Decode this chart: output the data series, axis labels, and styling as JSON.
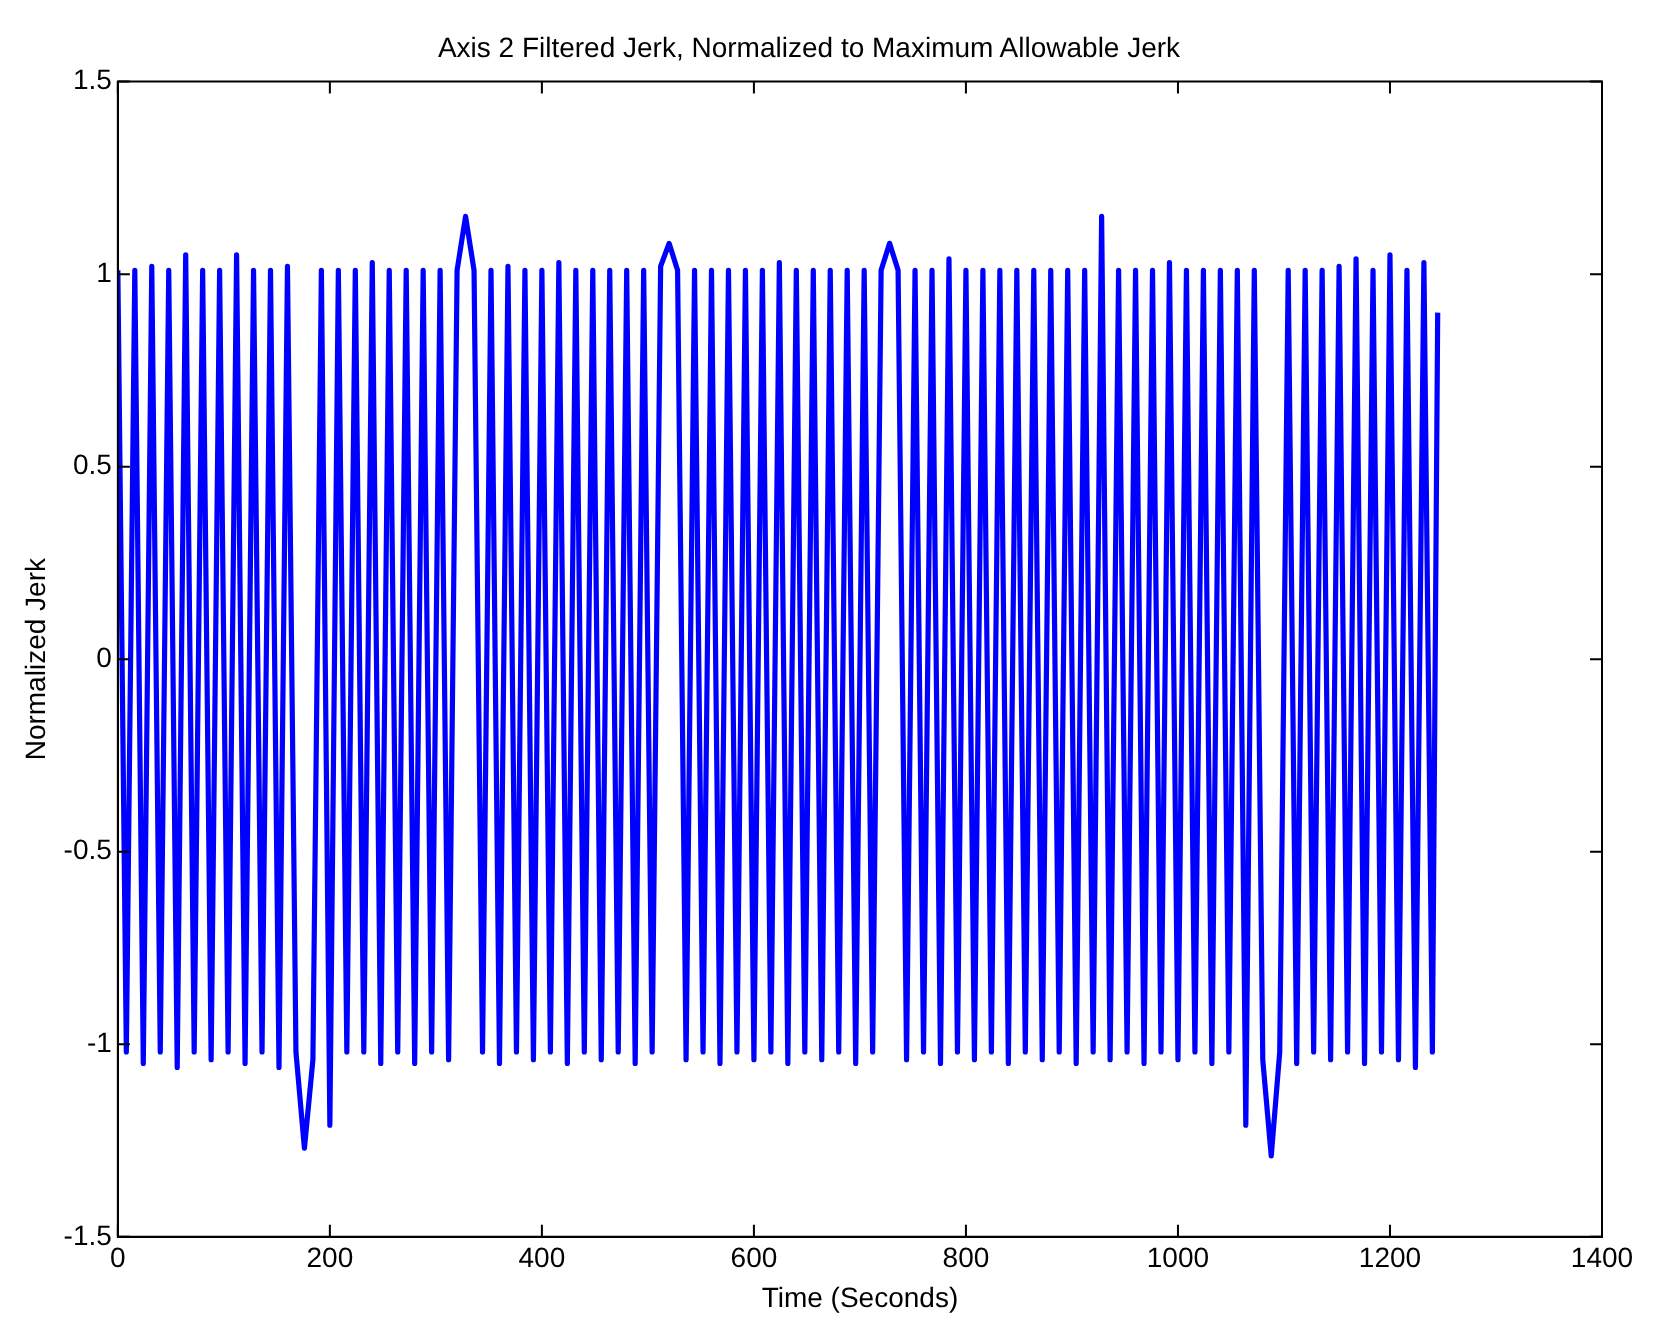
{
  "chart_data": {
    "type": "line",
    "title": "Axis 2 Filtered Jerk, Normalized to Maximum Allowable Jerk",
    "xlabel": "Time (Seconds)",
    "ylabel": "Normalized Jerk",
    "xlim": [
      0,
      1400
    ],
    "xticks": [
      0,
      200,
      400,
      600,
      800,
      1000,
      1200,
      1400
    ],
    "ylim": [
      -1.5,
      1.5
    ],
    "yticks": [
      -1.5,
      -1,
      -0.5,
      0,
      0.5,
      1,
      1.5
    ],
    "grid": false,
    "legend": false,
    "marker": "none",
    "line_style": "solid",
    "series": [
      {
        "color": "#0000ff",
        "x": [
          0,
          8,
          16,
          24,
          32,
          40,
          48,
          56,
          64,
          72,
          80,
          88,
          96,
          104,
          112,
          120,
          128,
          136,
          144,
          152,
          160,
          168,
          176,
          184,
          192,
          200,
          208,
          216,
          224,
          232,
          240,
          248,
          256,
          264,
          272,
          280,
          288,
          296,
          304,
          312,
          320,
          328,
          336,
          344,
          352,
          360,
          368,
          376,
          384,
          392,
          400,
          408,
          416,
          424,
          432,
          440,
          448,
          456,
          464,
          472,
          480,
          488,
          496,
          504,
          512,
          520,
          528,
          536,
          544,
          552,
          560,
          568,
          576,
          584,
          592,
          600,
          608,
          616,
          624,
          632,
          640,
          648,
          656,
          664,
          672,
          680,
          688,
          696,
          704,
          712,
          720,
          728,
          736,
          744,
          752,
          760,
          768,
          776,
          784,
          792,
          800,
          808,
          816,
          824,
          832,
          840,
          848,
          856,
          864,
          872,
          880,
          888,
          896,
          904,
          912,
          920,
          928,
          936,
          944,
          952,
          960,
          968,
          976,
          984,
          992,
          1000,
          1008,
          1016,
          1024,
          1032,
          1040,
          1048,
          1056,
          1064,
          1072,
          1080,
          1088,
          1096,
          1104,
          1112,
          1120,
          1128,
          1136,
          1144,
          1152,
          1160,
          1168,
          1176,
          1184,
          1192,
          1200,
          1208,
          1216,
          1224,
          1232,
          1240,
          1245
        ],
        "values": [
          1.01,
          -1.02,
          1.01,
          -1.05,
          1.02,
          -1.02,
          1.01,
          -1.06,
          1.05,
          -1.02,
          1.01,
          -1.04,
          1.01,
          -1.02,
          1.05,
          -1.05,
          1.01,
          -1.02,
          1.01,
          -1.06,
          1.02,
          -1.02,
          -1.27,
          -1.04,
          1.01,
          -1.21,
          1.01,
          -1.02,
          1.01,
          -1.02,
          1.03,
          -1.05,
          1.01,
          -1.02,
          1.01,
          -1.05,
          1.01,
          -1.02,
          1.01,
          -1.04,
          1.01,
          1.15,
          1.01,
          -1.02,
          1.01,
          -1.05,
          1.02,
          -1.02,
          1.01,
          -1.04,
          1.01,
          -1.02,
          1.03,
          -1.05,
          1.01,
          -1.02,
          1.01,
          -1.04,
          1.01,
          -1.02,
          1.01,
          -1.05,
          1.01,
          -1.02,
          1.02,
          1.08,
          1.01,
          -1.04,
          1.01,
          -1.02,
          1.01,
          -1.05,
          1.01,
          -1.02,
          1.01,
          -1.04,
          1.01,
          -1.02,
          1.03,
          -1.05,
          1.01,
          -1.02,
          1.01,
          -1.04,
          1.01,
          -1.02,
          1.01,
          -1.05,
          1.01,
          -1.02,
          1.01,
          1.08,
          1.01,
          -1.04,
          1.01,
          -1.02,
          1.01,
          -1.05,
          1.04,
          -1.02,
          1.01,
          -1.04,
          1.01,
          -1.02,
          1.01,
          -1.05,
          1.01,
          -1.02,
          1.01,
          -1.04,
          1.01,
          -1.02,
          1.01,
          -1.05,
          1.01,
          -1.02,
          1.15,
          -1.04,
          1.01,
          -1.02,
          1.01,
          -1.05,
          1.01,
          -1.02,
          1.03,
          -1.04,
          1.01,
          -1.02,
          1.01,
          -1.05,
          1.01,
          -1.02,
          1.01,
          -1.21,
          1.01,
          -1.04,
          -1.29,
          -1.02,
          1.01,
          -1.05,
          1.01,
          -1.02,
          1.01,
          -1.04,
          1.02,
          -1.02,
          1.04,
          -1.05,
          1.01,
          -1.02,
          1.05,
          -1.04,
          1.01,
          -1.06,
          1.03,
          -1.02,
          0.9
        ]
      }
    ]
  }
}
